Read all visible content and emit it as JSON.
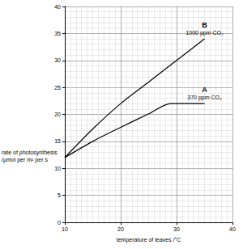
{
  "chart_data": {
    "type": "line",
    "xlabel": "temperature of leaves /°C",
    "ylabel": "rate of photosynthesis\n/µmol per m² per s",
    "x": [
      10,
      15,
      20,
      25,
      29,
      35
    ],
    "series": [
      {
        "name": "1000 ppm CO₂",
        "label": "B",
        "color": "#000000",
        "values": [
          12,
          17.3,
          22,
          26,
          29.2,
          34
        ]
      },
      {
        "name": "370 ppm CO₂",
        "label": "A",
        "color": "#000000",
        "values": [
          12,
          15,
          17.6,
          20.1,
          22,
          22
        ]
      }
    ],
    "xlim": [
      10,
      40
    ],
    "ylim": [
      0,
      40
    ],
    "xticks": [
      10,
      20,
      30,
      40
    ],
    "yticks": [
      0,
      5,
      10,
      15,
      20,
      25,
      30,
      35,
      40
    ],
    "grid": true
  }
}
